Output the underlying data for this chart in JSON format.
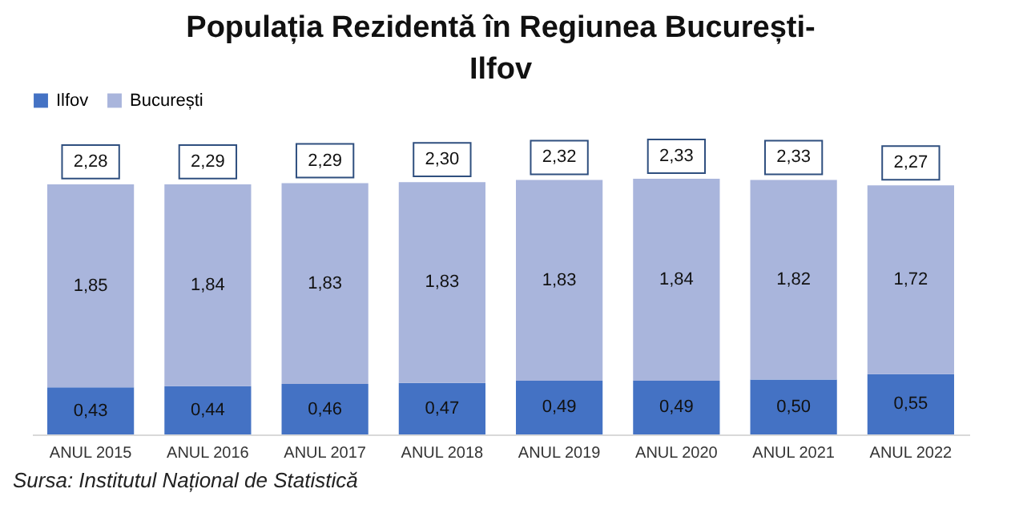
{
  "chart_data": {
    "type": "bar",
    "title": "Populația Rezidentă în Regiunea București-Ilfov",
    "categories": [
      "ANUL 2015",
      "ANUL 2016",
      "ANUL 2017",
      "ANUL 2018",
      "ANUL 2019",
      "ANUL 2020",
      "ANUL 2021",
      "ANUL 2022"
    ],
    "series": [
      {
        "name": "Ilfov",
        "color": "#4472c4",
        "values": [
          0.43,
          0.44,
          0.46,
          0.47,
          0.49,
          0.49,
          0.5,
          0.55
        ],
        "value_labels": [
          "0,43",
          "0,44",
          "0,46",
          "0,47",
          "0,49",
          "0,49",
          "0,50",
          "0,55"
        ]
      },
      {
        "name": "București",
        "color": "#a9b5dc",
        "values": [
          1.85,
          1.84,
          1.83,
          1.83,
          1.83,
          1.84,
          1.82,
          1.72
        ],
        "value_labels": [
          "1,85",
          "1,84",
          "1,83",
          "1,83",
          "1,83",
          "1,84",
          "1,82",
          "1,72"
        ]
      }
    ],
    "stacked": true,
    "totals": [
      "2,28",
      "2,29",
      "2,29",
      "2,30",
      "2,32",
      "2,33",
      "2,33",
      "2,27"
    ],
    "legend": "top",
    "annotations": [
      "Sursa: Institutul Național de Statistică"
    ]
  }
}
